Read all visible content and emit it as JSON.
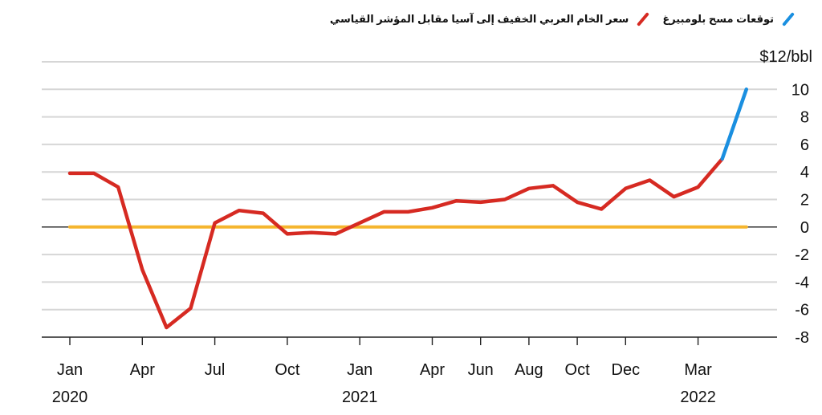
{
  "legend": {
    "items": [
      {
        "label": "سعر الخام العربي الخفيف إلى آسيا مقابل المؤشر القياسي",
        "color": "#d62a22"
      },
      {
        "label": "توقعات مسح بلومبيرغ",
        "color": "#1a8fe0"
      }
    ]
  },
  "chart_data": {
    "type": "line",
    "title": "",
    "xlabel": "",
    "ylabel": "$12/bbl",
    "ylim": [
      -8,
      12
    ],
    "y_ticks": [
      "$12/bbl",
      "10",
      "8",
      "6",
      "4",
      "2",
      "0",
      "-2",
      "-4",
      "-6",
      "-8"
    ],
    "y_tick_values": [
      12,
      10,
      8,
      6,
      4,
      2,
      0,
      -2,
      -4,
      -6,
      -8
    ],
    "x_ticks": [
      {
        "month": "Jan",
        "year": "2020",
        "date": "2020-01"
      },
      {
        "month": "Apr",
        "year": "",
        "date": "2020-04"
      },
      {
        "month": "Jul",
        "year": "",
        "date": "2020-07"
      },
      {
        "month": "Oct",
        "year": "",
        "date": "2020-10"
      },
      {
        "month": "Jan",
        "year": "2021",
        "date": "2021-01"
      },
      {
        "month": "Apr",
        "year": "",
        "date": "2021-04"
      },
      {
        "month": "Jun",
        "year": "",
        "date": "2021-06"
      },
      {
        "month": "Aug",
        "year": "",
        "date": "2021-08"
      },
      {
        "month": "Oct",
        "year": "",
        "date": "2021-10"
      },
      {
        "month": "Dec",
        "year": "",
        "date": "2021-12"
      },
      {
        "month": "Mar",
        "year": "2022",
        "date": "2022-03"
      }
    ],
    "series": [
      {
        "name": "سعر الخام العربي الخفيف إلى آسيا مقابل المؤشر القياسي",
        "color": "#d62a22",
        "points": [
          {
            "x": "2020-01",
            "y": 3.9
          },
          {
            "x": "2020-02",
            "y": 3.9
          },
          {
            "x": "2020-03",
            "y": 2.9
          },
          {
            "x": "2020-04",
            "y": -3.1
          },
          {
            "x": "2020-05",
            "y": -7.3
          },
          {
            "x": "2020-06",
            "y": -5.9
          },
          {
            "x": "2020-07",
            "y": 0.3
          },
          {
            "x": "2020-08",
            "y": 1.2
          },
          {
            "x": "2020-09",
            "y": 1.0
          },
          {
            "x": "2020-10",
            "y": -0.5
          },
          {
            "x": "2020-11",
            "y": -0.4
          },
          {
            "x": "2020-12",
            "y": -0.5
          },
          {
            "x": "2021-01",
            "y": 0.3
          },
          {
            "x": "2021-02",
            "y": 1.1
          },
          {
            "x": "2021-03",
            "y": 1.1
          },
          {
            "x": "2021-04",
            "y": 1.4
          },
          {
            "x": "2021-05",
            "y": 1.9
          },
          {
            "x": "2021-06",
            "y": 1.8
          },
          {
            "x": "2021-07",
            "y": 2.0
          },
          {
            "x": "2021-08",
            "y": 2.8
          },
          {
            "x": "2021-09",
            "y": 3.0
          },
          {
            "x": "2021-10",
            "y": 1.8
          },
          {
            "x": "2021-11",
            "y": 1.3
          },
          {
            "x": "2021-12",
            "y": 2.8
          },
          {
            "x": "2022-01",
            "y": 3.4
          },
          {
            "x": "2022-02",
            "y": 2.2
          },
          {
            "x": "2022-03",
            "y": 2.9
          },
          {
            "x": "2022-04",
            "y": 4.95
          }
        ]
      },
      {
        "name": "توقعات مسح بلومبيرغ",
        "color": "#1a8fe0",
        "points": [
          {
            "x": "2022-04",
            "y": 4.95
          },
          {
            "x": "2022-05",
            "y": 10.0
          }
        ]
      }
    ],
    "reference_line": {
      "y": 0,
      "color": "#f5b52e",
      "from": "2020-01",
      "to": "2022-05"
    }
  }
}
